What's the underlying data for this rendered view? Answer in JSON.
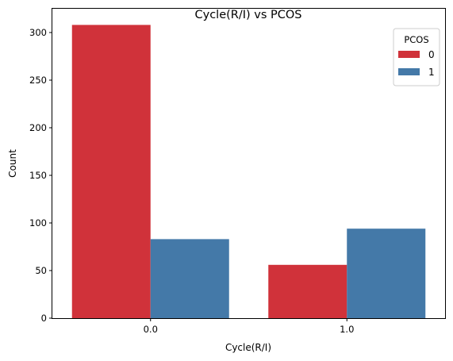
{
  "chart_data": {
    "type": "bar",
    "title": "Cycle(R/I) vs PCOS",
    "xlabel": "Cycle(R/I)",
    "ylabel": "Count",
    "categories": [
      "0.0",
      "1.0"
    ],
    "series": [
      {
        "name": "0",
        "values": [
          308,
          56
        ],
        "color": "#d0323a"
      },
      {
        "name": "1",
        "values": [
          83,
          94
        ],
        "color": "#4479a8"
      }
    ],
    "ylim": [
      0,
      325
    ],
    "yticks": [
      0,
      50,
      100,
      150,
      200,
      250,
      300
    ],
    "legend": {
      "title": "PCOS",
      "position": "top-right"
    },
    "grid": false
  }
}
